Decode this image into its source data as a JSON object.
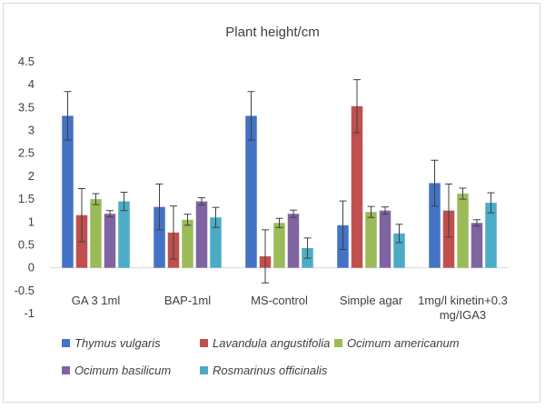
{
  "chart_data": {
    "type": "bar",
    "title": "Plant height/cm",
    "xlabel": "",
    "ylabel": "",
    "ylim": [
      -1,
      4.5
    ],
    "yticks": [
      "4.5",
      "4",
      "3.5",
      "3",
      "2.5",
      "2",
      "1.5",
      "1",
      "0.5",
      "0",
      "-0.5",
      "-1"
    ],
    "categories": [
      [
        "GA 3 1ml"
      ],
      [
        "BAP-1ml"
      ],
      [
        "MS-control"
      ],
      [
        "Simple agar"
      ],
      [
        "1mg/l kinetin+0.3",
        "mg/IGA3"
      ]
    ],
    "grid": false,
    "legend_position": "bottom",
    "error_bars": true,
    "series": [
      {
        "name": "Thymus vulgaris",
        "color": "#4472c4",
        "values": [
          3.32,
          1.33,
          3.32,
          0.93,
          1.85
        ],
        "errors": [
          0.53,
          0.5,
          0.53,
          0.53,
          0.5
        ]
      },
      {
        "name": "Lavandula angustifolia",
        "color": "#c0504d",
        "values": [
          1.15,
          0.77,
          0.25,
          3.53,
          1.25
        ],
        "errors": [
          0.58,
          0.58,
          0.58,
          0.58,
          0.58
        ]
      },
      {
        "name": "Ocimum americanum",
        "color": "#9bbb59",
        "values": [
          1.5,
          1.05,
          0.98,
          1.22,
          1.62
        ],
        "errors": [
          0.12,
          0.12,
          0.1,
          0.12,
          0.12
        ]
      },
      {
        "name": "Ocimum basilicum",
        "color": "#8064a2",
        "values": [
          1.18,
          1.45,
          1.18,
          1.25,
          0.98
        ],
        "errors": [
          0.07,
          0.08,
          0.08,
          0.08,
          0.07
        ]
      },
      {
        "name": "Rosmarinus officinalis",
        "color": "#4bacc6",
        "values": [
          1.45,
          1.1,
          0.43,
          0.75,
          1.42
        ],
        "errors": [
          0.2,
          0.22,
          0.22,
          0.2,
          0.22
        ]
      }
    ]
  }
}
